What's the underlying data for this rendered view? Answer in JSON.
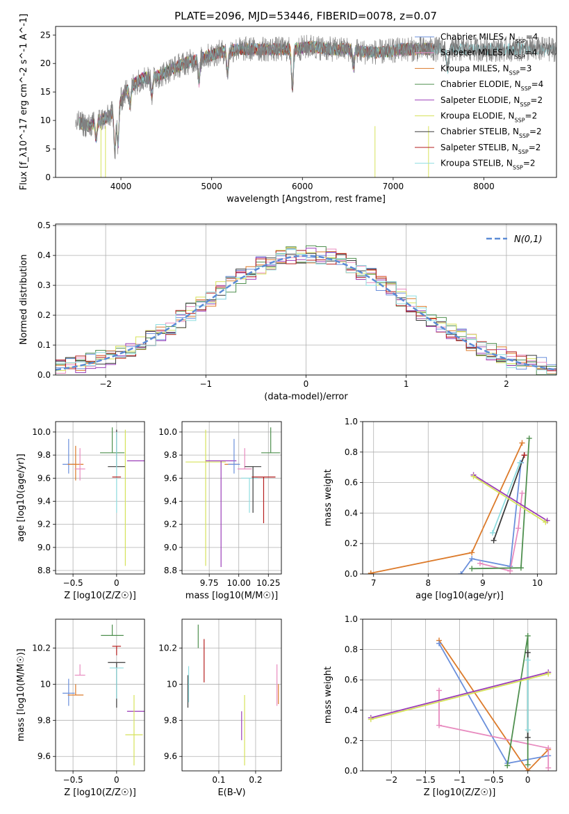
{
  "figure": {
    "title": "PLATE=2096, MJD=53446, FIBERID=0078, z=0.07"
  },
  "colors": {
    "Chabrier MILES": "#6a8fdb",
    "Salpeter MILES": "#e88bbf",
    "Kroupa MILES": "#dc7a2a",
    "Chabrier ELODIE": "#4e8f4e",
    "Salpeter ELODIE": "#9b3db8",
    "Kroupa ELODIE": "#d6e25a",
    "Chabrier STELIB": "#3a3a3a",
    "Salpeter STELIB": "#b51f1f",
    "Kroupa STELIB": "#8fdde0",
    "data": "#808080",
    "normal": "#5b8bd6"
  },
  "chart_data": [
    {
      "id": "spectrum",
      "type": "line",
      "xlabel": "wavelength [Angstrom, rest frame]",
      "ylabel": "Flux [f_λ10^-17 erg cm^-2 s^-1 A^-1]",
      "xlim": [
        3280,
        8800
      ],
      "ylim": [
        0,
        26.5
      ],
      "xticks": [
        4000,
        5000,
        6000,
        7000,
        8000
      ],
      "yticks": [
        0,
        5,
        10,
        15,
        20,
        25
      ],
      "grid": false,
      "legend_position": "top-right",
      "continuum": {
        "x": [
          3550,
          3650,
          3750,
          3850,
          3950,
          4050,
          4150,
          4250,
          4350,
          4450,
          4550,
          4700,
          4900,
          5100,
          5300,
          5500,
          5700,
          5900,
          6100,
          6300,
          6500,
          6700,
          6900,
          7100,
          7300,
          7450
        ],
        "y": [
          9.5,
          9.0,
          10.0,
          10.5,
          12.0,
          15.0,
          16.5,
          17.5,
          17.5,
          18.0,
          19.0,
          20.0,
          21.0,
          22.0,
          22.5,
          22.5,
          22.5,
          22.5,
          23.0,
          22.5,
          22.5,
          22.0,
          22.0,
          22.5,
          22.5,
          22.5
        ]
      },
      "data_range": [
        3500,
        8800
      ],
      "legend": [
        {
          "label": "Chabrier MILES",
          "n": "4"
        },
        {
          "label": "Salpeter MILES",
          "n": "4"
        },
        {
          "label": "Kroupa MILES",
          "n": "3"
        },
        {
          "label": "Chabrier ELODIE",
          "n": "4"
        },
        {
          "label": "Salpeter ELODIE",
          "n": "2"
        },
        {
          "label": "Kroupa ELODIE",
          "n": "2"
        },
        {
          "label": "Chabrier STELIB",
          "n": "2"
        },
        {
          "label": "Salpeter STELIB",
          "n": "2"
        },
        {
          "label": "Kroupa STELIB",
          "n": "2"
        }
      ]
    },
    {
      "id": "residuals",
      "type": "histogram",
      "xlabel": "(data-model)/error",
      "ylabel": "Normed distribution",
      "xlim": [
        -2.5,
        2.5
      ],
      "ylim": [
        0,
        0.505
      ],
      "xticks": [
        -2,
        -1,
        0,
        1,
        2
      ],
      "yticks": [
        0.0,
        0.1,
        0.2,
        0.3,
        0.4,
        0.5
      ],
      "grid": true,
      "bin_width": 0.1,
      "legend_label": "N(0,1)",
      "legend_position": "top-right"
    },
    {
      "id": "age_vs_Z",
      "type": "scatter",
      "xlabel": "Z [log10(Z/Z☉)]",
      "ylabel": "age [log10(age/yr)]",
      "xlim": [
        -0.7,
        0.32
      ],
      "ylim": [
        8.77,
        10.09
      ],
      "xticks": [
        -0.5,
        0.0
      ],
      "yticks": [
        8.8,
        9.0,
        9.2,
        9.4,
        9.6,
        9.8,
        10.0
      ],
      "grid": true,
      "points": [
        {
          "series": "Chabrier MILES",
          "x": -0.55,
          "y": 9.72,
          "xerr": 0.07,
          "yerr": [
            0.08,
            0.22
          ]
        },
        {
          "series": "Kroupa MILES",
          "x": -0.47,
          "y": 9.72,
          "xerr": 0.09,
          "yerr": [
            0.14,
            0.16
          ]
        },
        {
          "series": "Salpeter MILES",
          "x": -0.42,
          "y": 9.68,
          "xerr": 0.06,
          "yerr": [
            0.1,
            0.18
          ]
        },
        {
          "series": "Chabrier ELODIE",
          "x": -0.05,
          "y": 9.82,
          "xerr": 0.14,
          "yerr": [
            0.0,
            0.22
          ]
        },
        {
          "series": "Chabrier STELIB",
          "x": 0.0,
          "y": 9.7,
          "xerr": 0.1,
          "yerr": [
            0.0,
            0.32
          ]
        },
        {
          "series": "Kroupa STELIB",
          "x": 0.0,
          "y": 9.6,
          "xerr": 0.0,
          "yerr": [
            0.3,
            0.4
          ]
        },
        {
          "series": "Salpeter STELIB",
          "x": 0.0,
          "y": 9.61,
          "xerr": 0.05,
          "yerr": [
            0.0,
            0.0
          ]
        },
        {
          "series": "Kroupa ELODIE",
          "x": 0.1,
          "y": 9.6,
          "xerr": 0.0,
          "yerr": [
            0.76,
            0.42
          ]
        },
        {
          "series": "Salpeter ELODIE",
          "x": 0.22,
          "y": 9.75,
          "xerr": 0.1,
          "yerr": [
            0.0,
            0.0
          ]
        }
      ]
    },
    {
      "id": "age_vs_mass",
      "type": "scatter",
      "xlabel": "mass [log10(M/M☉)]",
      "ylabel": "",
      "xlim": [
        9.52,
        10.36
      ],
      "ylim": [
        8.77,
        10.09
      ],
      "xticks": [
        9.75,
        10.0,
        10.25
      ],
      "xtick_labels": [
        "9.75",
        "10.00",
        "10.25"
      ],
      "yticks": [
        8.8,
        9.0,
        9.2,
        9.4,
        9.6,
        9.8,
        10.0
      ],
      "grid": true,
      "points": [
        {
          "series": "Kroupa ELODIE",
          "x": 9.72,
          "y": 9.74,
          "xerr": 0.17,
          "yerr": [
            0.9,
            0.28
          ]
        },
        {
          "series": "Salpeter ELODIE",
          "x": 9.85,
          "y": 9.75,
          "xerr": 0.13,
          "yerr": [
            0.92,
            0.0
          ]
        },
        {
          "series": "Kroupa MILES",
          "x": 9.94,
          "y": 9.72,
          "xerr": 0.06,
          "yerr": [
            0.0,
            0.0
          ]
        },
        {
          "series": "Chabrier MILES",
          "x": 9.96,
          "y": 9.72,
          "xerr": 0.05,
          "yerr": [
            0.08,
            0.22
          ]
        },
        {
          "series": "Salpeter MILES",
          "x": 10.05,
          "y": 9.68,
          "xerr": 0.06,
          "yerr": [
            0.0,
            0.18
          ]
        },
        {
          "series": "Kroupa STELIB",
          "x": 10.09,
          "y": 9.6,
          "xerr": 0.07,
          "yerr": [
            0.3,
            0.0
          ]
        },
        {
          "series": "Chabrier STELIB",
          "x": 10.12,
          "y": 9.7,
          "xerr": 0.07,
          "yerr": [
            0.4,
            0.0
          ]
        },
        {
          "series": "Salpeter STELIB",
          "x": 10.21,
          "y": 9.61,
          "xerr": 0.1,
          "yerr": [
            0.4,
            0.0
          ]
        },
        {
          "series": "Chabrier ELODIE",
          "x": 10.27,
          "y": 9.82,
          "xerr": 0.08,
          "yerr": [
            0.0,
            0.22
          ]
        }
      ]
    },
    {
      "id": "weight_vs_age",
      "type": "line",
      "xlabel": "age [log10(age/yr)]",
      "ylabel": "mass weight",
      "xlim": [
        6.8,
        10.35
      ],
      "ylim": [
        0,
        1.0
      ],
      "xticks": [
        7,
        8,
        9,
        10
      ],
      "yticks": [
        0.0,
        0.2,
        0.4,
        0.6,
        0.8,
        1.0
      ],
      "grid": true,
      "series": [
        {
          "name": "Kroupa MILES",
          "x": [
            6.95,
            8.8,
            9.72
          ],
          "y": [
            0.005,
            0.14,
            0.86
          ]
        },
        {
          "name": "Chabrier MILES",
          "x": [
            8.6,
            8.8,
            9.5,
            9.7
          ],
          "y": [
            0.0,
            0.1,
            0.05,
            0.73
          ]
        },
        {
          "name": "Salpeter MILES",
          "x": [
            8.95,
            9.5,
            9.65,
            9.72
          ],
          "y": [
            0.07,
            0.02,
            0.3,
            0.53
          ]
        },
        {
          "name": "Chabrier ELODIE",
          "x": [
            8.8,
            9.7,
            9.85
          ],
          "y": [
            0.035,
            0.04,
            0.89
          ]
        },
        {
          "name": "Chabrier STELIB",
          "x": [
            9.2,
            9.76
          ],
          "y": [
            0.22,
            0.78
          ]
        },
        {
          "name": "Kroupa STELIB",
          "x": [
            9.18,
            9.68
          ],
          "y": [
            0.27,
            0.73
          ]
        },
        {
          "name": "Salpeter ELODIE",
          "x": [
            8.83,
            10.18
          ],
          "y": [
            0.65,
            0.35
          ]
        },
        {
          "name": "Kroupa ELODIE",
          "x": [
            8.83,
            10.15
          ],
          "y": [
            0.64,
            0.34
          ]
        },
        {
          "name": "Salpeter STELIB",
          "x": [
            9.76
          ],
          "y": [
            0.78
          ]
        }
      ]
    },
    {
      "id": "mass_vs_Z",
      "type": "scatter",
      "xlabel": "Z [log10(Z/Z☉)]",
      "ylabel": "mass [log10(M/M☉)]",
      "xlim": [
        -0.7,
        0.32
      ],
      "ylim": [
        9.52,
        10.36
      ],
      "xticks": [
        -0.5,
        0.0
      ],
      "yticks": [
        9.6,
        9.8,
        10.0,
        10.2
      ],
      "grid": true,
      "points": [
        {
          "series": "Chabrier MILES",
          "x": -0.55,
          "y": 9.95,
          "xerr": 0.07,
          "yerr": [
            0.07,
            0.08
          ]
        },
        {
          "series": "Kroupa MILES",
          "x": -0.47,
          "y": 9.94,
          "xerr": 0.09,
          "yerr": [
            0.0,
            0.06
          ]
        },
        {
          "series": "Salpeter MILES",
          "x": -0.42,
          "y": 10.05,
          "xerr": 0.06,
          "yerr": [
            0.0,
            0.06
          ]
        },
        {
          "series": "Chabrier ELODIE",
          "x": -0.05,
          "y": 10.27,
          "xerr": 0.13,
          "yerr": [
            0.0,
            0.06
          ]
        },
        {
          "series": "Salpeter STELIB",
          "x": 0.0,
          "y": 10.21,
          "xerr": 0.05,
          "yerr": [
            0.05,
            0.0
          ]
        },
        {
          "series": "Chabrier STELIB",
          "x": 0.0,
          "y": 10.12,
          "xerr": 0.1,
          "yerr": [
            0.25,
            0.0
          ]
        },
        {
          "series": "Kroupa STELIB",
          "x": 0.0,
          "y": 10.09,
          "xerr": 0.08,
          "yerr": [
            0.17,
            0.0
          ]
        },
        {
          "series": "Salpeter ELODIE",
          "x": 0.22,
          "y": 9.85,
          "xerr": 0.1,
          "yerr": [
            0.0,
            0.0
          ]
        },
        {
          "series": "Kroupa ELODIE",
          "x": 0.2,
          "y": 9.72,
          "xerr": 0.1,
          "yerr": [
            0.17,
            0.22
          ]
        }
      ]
    },
    {
      "id": "mass_vs_ebv",
      "type": "scatter",
      "xlabel": "E(B-V)",
      "ylabel": "",
      "xlim": [
        0.0,
        0.27
      ],
      "ylim": [
        9.52,
        10.36
      ],
      "xticks": [
        0.1,
        0.2
      ],
      "yticks": [
        9.6,
        9.8,
        10.0,
        10.2
      ],
      "grid": true,
      "points": [
        {
          "series": "Chabrier STELIB",
          "x": 0.016,
          "y": 10.05,
          "xerr": 0.0,
          "yerr": [
            0.18,
            0.0
          ]
        },
        {
          "series": "Kroupa STELIB",
          "x": 0.018,
          "y": 10.0,
          "xerr": 0.0,
          "yerr": [
            0.1,
            0.1
          ]
        },
        {
          "series": "Chabrier ELODIE",
          "x": 0.044,
          "y": 10.27,
          "xerr": 0.0,
          "yerr": [
            0.07,
            0.06
          ]
        },
        {
          "series": "Salpeter STELIB",
          "x": 0.06,
          "y": 10.12,
          "xerr": 0.0,
          "yerr": [
            0.11,
            0.13
          ]
        },
        {
          "series": "Salpeter ELODIE",
          "x": 0.162,
          "y": 9.77,
          "xerr": 0.0,
          "yerr": [
            0.08,
            0.08
          ]
        },
        {
          "series": "Kroupa ELODIE",
          "x": 0.17,
          "y": 9.75,
          "xerr": 0.0,
          "yerr": [
            0.2,
            0.19
          ]
        },
        {
          "series": "Salpeter MILES",
          "x": 0.258,
          "y": 10.0,
          "xerr": 0.0,
          "yerr": [
            0.12,
            0.11
          ]
        },
        {
          "series": "Kroupa MILES",
          "x": 0.262,
          "y": 9.94,
          "xerr": 0.0,
          "yerr": [
            0.05,
            0.06
          ]
        }
      ]
    },
    {
      "id": "weight_vs_Z",
      "type": "line",
      "xlabel": "Z [log10(Z/Z☉)]",
      "ylabel": "mass weight",
      "xlim": [
        -2.42,
        0.42
      ],
      "ylim": [
        0,
        1.0
      ],
      "xticks": [
        -2.0,
        -1.5,
        -1.0,
        -0.5,
        0.0
      ],
      "yticks": [
        0.0,
        0.2,
        0.4,
        0.6,
        0.8,
        1.0
      ],
      "grid": true,
      "series": [
        {
          "name": "Kroupa MILES",
          "x": [
            -1.3,
            0.0,
            0.3
          ],
          "y": [
            0.86,
            0.0,
            0.14
          ]
        },
        {
          "name": "Chabrier MILES",
          "x": [
            -1.3,
            -0.3,
            0.3
          ],
          "y": [
            0.84,
            0.05,
            0.1
          ]
        },
        {
          "name": "Salpeter MILES",
          "x": [
            -1.3,
            -1.3,
            0.3,
            0.3
          ],
          "y": [
            0.53,
            0.3,
            0.15,
            0.02
          ]
        },
        {
          "name": "Chabrier ELODIE",
          "x": [
            -0.3,
            0.0,
            0.0
          ],
          "y": [
            0.035,
            0.89,
            0.04
          ]
        },
        {
          "name": "Chabrier STELIB",
          "x": [
            0.0,
            0.0
          ],
          "y": [
            0.22,
            0.78
          ]
        },
        {
          "name": "Kroupa STELIB",
          "x": [
            0.0,
            0.0
          ],
          "y": [
            0.27,
            0.73
          ]
        },
        {
          "name": "Salpeter ELODIE",
          "x": [
            -2.3,
            0.3
          ],
          "y": [
            0.35,
            0.65
          ]
        },
        {
          "name": "Kroupa ELODIE",
          "x": [
            -2.3,
            0.3
          ],
          "y": [
            0.34,
            0.64
          ]
        }
      ]
    }
  ]
}
